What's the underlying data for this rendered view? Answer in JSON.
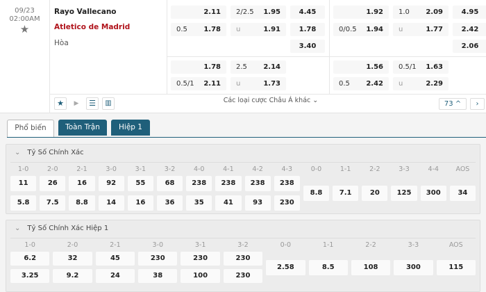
{
  "match": {
    "date": "09/23",
    "time": "02:00AM",
    "home": "Rayo Vallecano",
    "away": "Atletico de Madrid",
    "draw": "Hòa"
  },
  "odds_ft": {
    "hdp": [
      {
        "h": "",
        "o": "2.11"
      },
      {
        "h": "0.5",
        "o": "1.78"
      }
    ],
    "ou": [
      {
        "h": "2/2.5",
        "o": "1.95"
      },
      {
        "h": "u",
        "o": "1.91"
      }
    ],
    "x12": [
      "4.45",
      "1.78",
      "3.40"
    ],
    "hdp2": [
      {
        "h": "",
        "o": "1.78"
      },
      {
        "h": "0.5/1",
        "o": "2.11"
      }
    ],
    "ou2": [
      {
        "h": "2.5",
        "o": "2.14"
      },
      {
        "h": "u",
        "o": "1.73"
      }
    ]
  },
  "odds_h1": {
    "hdp": [
      {
        "h": "",
        "o": "1.92"
      },
      {
        "h": "0/0.5",
        "o": "1.94"
      }
    ],
    "ou": [
      {
        "h": "1.0",
        "o": "2.09"
      },
      {
        "h": "u",
        "o": "1.77"
      }
    ],
    "x12": [
      "4.95",
      "2.42",
      "2.06"
    ],
    "hdp2": [
      {
        "h": "",
        "o": "1.56"
      },
      {
        "h": "0.5",
        "o": "2.42"
      }
    ],
    "ou2": [
      {
        "h": "0.5/1",
        "o": "1.63"
      },
      {
        "h": "u",
        "o": "2.29"
      }
    ]
  },
  "toolbar": {
    "more_label": "Các loại cược Châu Á khác",
    "count": "73"
  },
  "tabs": [
    "Phổ biến",
    "Toàn Trận",
    "Hiệp 1"
  ],
  "accent": "#1f5f7a",
  "sections": [
    {
      "title": "Tỷ Số Chính Xác",
      "cols": [
        {
          "l": "1-0",
          "v": [
            "11",
            "5.8"
          ]
        },
        {
          "l": "2-0",
          "v": [
            "26",
            "7.5"
          ]
        },
        {
          "l": "2-1",
          "v": [
            "16",
            "8.8"
          ]
        },
        {
          "l": "3-0",
          "v": [
            "92",
            "14"
          ]
        },
        {
          "l": "3-1",
          "v": [
            "55",
            "16"
          ]
        },
        {
          "l": "3-2",
          "v": [
            "68",
            "36"
          ]
        },
        {
          "l": "4-0",
          "v": [
            "238",
            "35"
          ]
        },
        {
          "l": "4-1",
          "v": [
            "238",
            "41"
          ]
        },
        {
          "l": "4-2",
          "v": [
            "238",
            "93"
          ]
        },
        {
          "l": "4-3",
          "v": [
            "238",
            "230"
          ]
        },
        {
          "l": "0-0",
          "v": [
            "8.8"
          ]
        },
        {
          "l": "1-1",
          "v": [
            "7.1"
          ]
        },
        {
          "l": "2-2",
          "v": [
            "20"
          ]
        },
        {
          "l": "3-3",
          "v": [
            "125"
          ]
        },
        {
          "l": "4-4",
          "v": [
            "300"
          ]
        },
        {
          "l": "AOS",
          "v": [
            "34"
          ]
        }
      ]
    },
    {
      "title": "Tỷ Số Chính Xác Hiệp 1",
      "cols": [
        {
          "l": "1-0",
          "v": [
            "6.2",
            "3.25"
          ]
        },
        {
          "l": "2-0",
          "v": [
            "32",
            "9.2"
          ]
        },
        {
          "l": "2-1",
          "v": [
            "45",
            "24"
          ]
        },
        {
          "l": "3-0",
          "v": [
            "230",
            "38"
          ]
        },
        {
          "l": "3-1",
          "v": [
            "230",
            "100"
          ]
        },
        {
          "l": "3-2",
          "v": [
            "230",
            "230"
          ]
        },
        {
          "l": "0-0",
          "v": [
            "2.58"
          ]
        },
        {
          "l": "1-1",
          "v": [
            "8.5"
          ]
        },
        {
          "l": "2-2",
          "v": [
            "108"
          ]
        },
        {
          "l": "3-3",
          "v": [
            "300"
          ]
        },
        {
          "l": "AOS",
          "v": [
            "115"
          ]
        }
      ]
    }
  ]
}
